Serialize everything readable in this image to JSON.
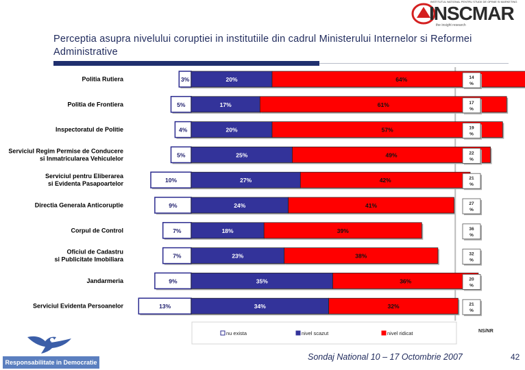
{
  "header": {
    "title": "Perceptia asupra nivelului coruptiei in institutiile din cadrul Ministerului Internelor si Reformei Administrative",
    "logo_text": "INSCMAR",
    "logo_top_text": "INSTITUTUL NATIONAL PENTRU STUDII DE OPINIE SI MARKETING",
    "logo_tagline": "the insight research"
  },
  "footer": {
    "survey_label": "Sondaj National 10 – 17 Octombrie 2007",
    "page_number": "42",
    "slogan": "Responsabilitate in Democratie"
  },
  "colors": {
    "nu_exista": "#2a2a8e",
    "nivel_scazut": "#33339a",
    "nivel_ridicat": "#ff0000",
    "title": "#1f2a5c",
    "accent_rule": "#1f2f6e"
  },
  "chart_data": {
    "type": "bar",
    "orientation": "horizontal",
    "stacked": true,
    "categories": [
      "Politia Rutiera",
      "Politia de Frontiera",
      "Inspectoratul de Politie",
      "Serviciul Regim Permise de Conducere si Inmatricularea Vehiculelor",
      "Serviciul pentru Eliberarea si Evidenta Pasapoartelor",
      "Directia Generala Anticoruptie",
      "Corpul de Control",
      "Oficiul de Cadastru si Publicitate Imobiliara",
      "Jandarmeria",
      "Serviciul Evidenta Persoanelor"
    ],
    "category_lines": [
      [
        "Politia Rutiera"
      ],
      [
        "Politia de Frontiera"
      ],
      [
        "Inspectoratul de Politie"
      ],
      [
        "Serviciul Regim Permise de Conducere",
        "si Inmatricularea Vehiculelor"
      ],
      [
        "Serviciul pentru Eliberarea",
        "si Evidenta Pasapoartelor"
      ],
      [
        "Directia Generala Anticoruptie"
      ],
      [
        "Corpul de Control"
      ],
      [
        "Oficiul de Cadastru",
        "si Publicitate Imobiliara"
      ],
      [
        "Jandarmeria"
      ],
      [
        "Serviciul Evidenta Persoanelor"
      ]
    ],
    "series": [
      {
        "name": "nu exista",
        "values": [
          3,
          5,
          4,
          5,
          10,
          9,
          7,
          7,
          9,
          13
        ],
        "labels": [
          "3%",
          "5%",
          "4%",
          "5%",
          "10%",
          "9%",
          "7%",
          "7%",
          "9%",
          "13%"
        ]
      },
      {
        "name": "nivel scazut",
        "values": [
          20,
          17,
          20,
          25,
          27,
          24,
          18,
          23,
          35,
          34
        ],
        "labels": [
          "20%",
          "17%",
          "20%",
          "25%",
          "27%",
          "24%",
          "18%",
          "23%",
          "35%",
          "34%"
        ]
      },
      {
        "name": "nivel ridicat",
        "values": [
          64,
          61,
          57,
          49,
          42,
          41,
          39,
          38,
          36,
          32
        ],
        "labels": [
          "64%",
          "61%",
          "57%",
          "49%",
          "42%",
          "41%",
          "39%",
          "38%",
          "36%",
          "32%"
        ]
      }
    ],
    "ns_nr": {
      "name": "NS/NR",
      "values": [
        14,
        17,
        19,
        22,
        21,
        27,
        36,
        32,
        20,
        21
      ],
      "labels": [
        "14 %",
        "17 %",
        "19 %",
        "22 %",
        "21 %",
        "27 %",
        "36 %",
        "32 %",
        "20 %",
        "21 %"
      ]
    },
    "legend_position": "bottom"
  }
}
